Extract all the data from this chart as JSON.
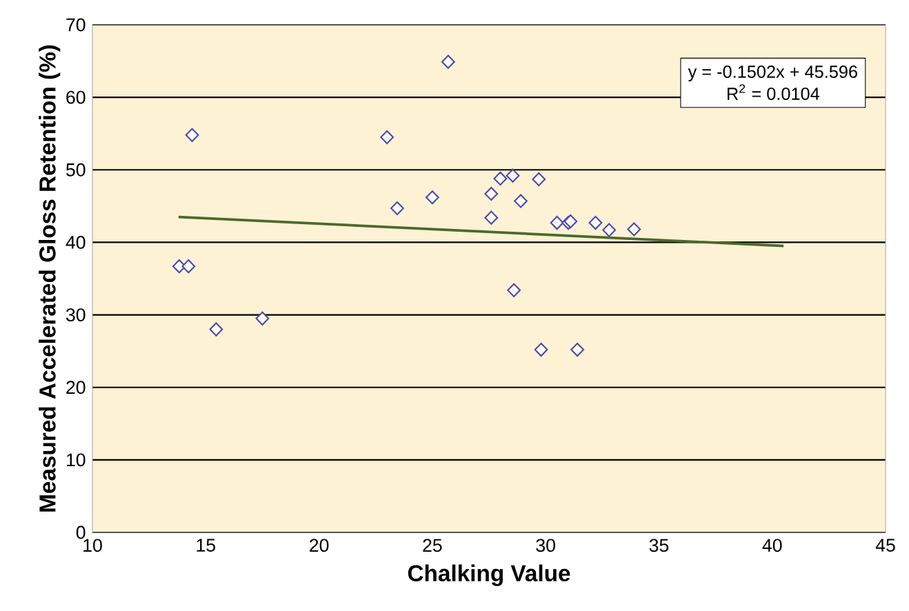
{
  "chart_data": {
    "type": "scatter",
    "xlabel": "Chalking Value",
    "ylabel": "Measured Accelerated Gloss Retention (%)",
    "xlim": [
      10,
      45
    ],
    "ylim": [
      0,
      70
    ],
    "xticks": [
      10,
      15,
      20,
      25,
      30,
      35,
      40,
      45
    ],
    "yticks": [
      0,
      10,
      20,
      30,
      40,
      50,
      60,
      70
    ],
    "grid": "y",
    "marker": "diamond",
    "annotations": [
      "y = -0.1502x + 45.596",
      "R$^{2}$ = 0.0104"
    ],
    "series": [
      {
        "color": "#4b4baf",
        "x": [
          14.4,
          25.7,
          23.0,
          23.45,
          25.0,
          13.83,
          14.24,
          15.46,
          17.5,
          28.0,
          28.55,
          27.6,
          27.6,
          28.9,
          29.7,
          30.5,
          31.0,
          31.1,
          32.2,
          32.8,
          33.9,
          28.6,
          29.8,
          31.4
        ],
        "values": [
          54.8,
          64.9,
          54.5,
          44.7,
          46.2,
          36.7,
          36.7,
          28.0,
          29.5,
          48.8,
          49.2,
          46.7,
          43.4,
          45.7,
          48.7,
          42.7,
          42.7,
          42.9,
          42.7,
          41.7,
          41.8,
          33.4,
          25.2,
          25.2
        ]
      },
      {
        "type": "line",
        "color": "#4a6b2a",
        "marker": "none",
        "x": [
          13.8,
          40.5
        ],
        "values": [
          43.5,
          39.5
        ]
      }
    ]
  }
}
